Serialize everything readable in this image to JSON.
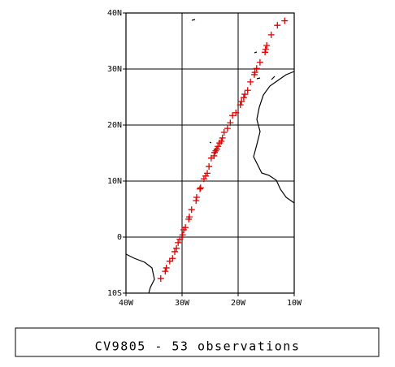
{
  "chart_data": {
    "type": "scatter",
    "caption": "CV9805 - 53 observations",
    "color": "#e00000",
    "grid": true,
    "xlim": [
      -40,
      -10
    ],
    "ylim": [
      -10,
      40
    ],
    "xticks": [
      {
        "value": -40,
        "label": "40W"
      },
      {
        "value": -30,
        "label": "30W"
      },
      {
        "value": -20,
        "label": "20W"
      },
      {
        "value": -10,
        "label": "10W"
      }
    ],
    "yticks": [
      {
        "value": -10,
        "label": "10S"
      },
      0,
      {
        "value": 10,
        "label": "10N"
      },
      {
        "value": 20,
        "label": "20N"
      },
      {
        "value": 30,
        "label": "30N"
      },
      {
        "value": 40,
        "label": "40N"
      }
    ],
    "x": [
      -11.7,
      -13.0,
      -14.1,
      -14.9,
      -15.1,
      -15.2,
      -16.1,
      -17.0,
      -17.1,
      -17.8,
      -18.3,
      -18.8,
      -19.4,
      -19.6,
      -20.4,
      -21.0,
      -21.4,
      -21.9,
      -22.5,
      -22.8,
      -23.0,
      -23.6,
      -23.8,
      -24.2,
      -24.3,
      -24.8,
      -25.2,
      -25.8,
      -26.1,
      -26.7,
      -26.8,
      -27.4,
      -27.5,
      -28.3,
      -28.7,
      -28.8,
      -29.4,
      -29.7,
      -29.9,
      -30.4,
      -30.7,
      -31.0,
      -31.3,
      -31.7,
      -32.2,
      -32.8,
      -33.0,
      -33.8,
      -23.3,
      -24.0,
      -16.7,
      -25.5,
      -19.0
    ],
    "y": [
      38.6,
      37.8,
      36.1,
      34.2,
      33.5,
      33.0,
      31.2,
      29.4,
      29.0,
      27.7,
      26.2,
      25.5,
      24.2,
      23.6,
      22.2,
      21.7,
      20.4,
      19.4,
      18.7,
      17.7,
      17.1,
      16.2,
      15.7,
      15.1,
      14.5,
      14.1,
      12.6,
      10.9,
      10.4,
      8.8,
      8.6,
      7.1,
      6.5,
      4.9,
      3.6,
      3.2,
      1.7,
      1.3,
      0.4,
      -0.4,
      -1.0,
      -2.0,
      -2.6,
      -3.8,
      -4.3,
      -5.5,
      -6.1,
      -7.4,
      16.8,
      15.4,
      30.1,
      11.4,
      24.9
    ]
  }
}
